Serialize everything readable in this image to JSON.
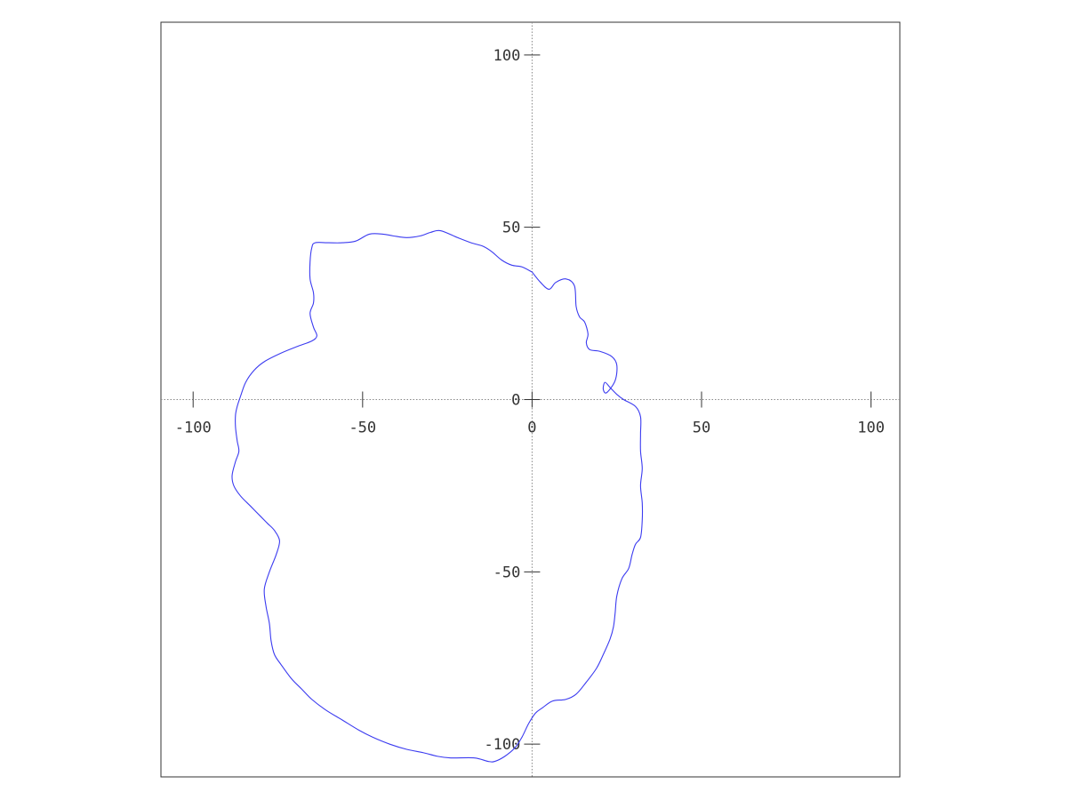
{
  "chart_data": {
    "type": "line",
    "title": "",
    "xlabel": "",
    "ylabel": "",
    "xlim": [
      -109.5,
      108.5
    ],
    "ylim": [
      -109.5,
      109.5
    ],
    "grid": false,
    "axis_lines_through_origin": true,
    "axis_line_style": "dotted",
    "x_ticks": [
      -100,
      -50,
      0,
      50,
      100
    ],
    "y_ticks": [
      -100,
      -50,
      0,
      50,
      100
    ],
    "x_tick_labels": [
      "-100",
      "-50",
      "0",
      "50",
      "100"
    ],
    "y_tick_labels": [
      "-100",
      "-50",
      "0",
      "50",
      "100"
    ],
    "series": [
      {
        "color": "#3b3bf0",
        "closed": true,
        "points": [
          [
            0,
            37
          ],
          [
            -3,
            38.5
          ],
          [
            -6,
            39
          ],
          [
            -9,
            40.5
          ],
          [
            -12,
            43
          ],
          [
            -14.5,
            44.5
          ],
          [
            -18,
            45.5
          ],
          [
            -22,
            47
          ],
          [
            -27,
            49
          ],
          [
            -30,
            48.5
          ],
          [
            -33,
            47.5
          ],
          [
            -37,
            47
          ],
          [
            -41,
            47.5
          ],
          [
            -44,
            48
          ],
          [
            -48,
            48
          ],
          [
            -52,
            46
          ],
          [
            -56,
            45.5
          ],
          [
            -60,
            45.5
          ],
          [
            -64,
            45.5
          ],
          [
            -65,
            44
          ],
          [
            -65.5,
            40
          ],
          [
            -65.5,
            35
          ],
          [
            -64.5,
            31
          ],
          [
            -64.5,
            28
          ],
          [
            -65.5,
            25
          ],
          [
            -64.5,
            21
          ],
          [
            -63.5,
            18.5
          ],
          [
            -65,
            17
          ],
          [
            -69,
            15.5
          ],
          [
            -74,
            13.5
          ],
          [
            -79,
            11
          ],
          [
            -82,
            8.5
          ],
          [
            -84.5,
            5
          ],
          [
            -86,
            1
          ],
          [
            -87,
            -2
          ],
          [
            -87.5,
            -4.5
          ],
          [
            -87.5,
            -8
          ],
          [
            -87,
            -12
          ],
          [
            -86.5,
            -15
          ],
          [
            -87.5,
            -18
          ],
          [
            -88.5,
            -22
          ],
          [
            -88,
            -25
          ],
          [
            -86,
            -28
          ],
          [
            -83,
            -31
          ],
          [
            -80,
            -34
          ],
          [
            -78,
            -36
          ],
          [
            -76,
            -38
          ],
          [
            -74.5,
            -41
          ],
          [
            -75.5,
            -45
          ],
          [
            -77.5,
            -50
          ],
          [
            -79,
            -55
          ],
          [
            -78.5,
            -60
          ],
          [
            -77.5,
            -65
          ],
          [
            -77,
            -70
          ],
          [
            -76,
            -74
          ],
          [
            -74,
            -77
          ],
          [
            -71,
            -81
          ],
          [
            -68,
            -84
          ],
          [
            -65,
            -87
          ],
          [
            -61,
            -90
          ],
          [
            -56,
            -93
          ],
          [
            -51,
            -96
          ],
          [
            -47,
            -98
          ],
          [
            -42,
            -100
          ],
          [
            -37,
            -101.5
          ],
          [
            -32,
            -102.5
          ],
          [
            -28,
            -103.5
          ],
          [
            -24,
            -104
          ],
          [
            -17,
            -104
          ],
          [
            -13,
            -105
          ],
          [
            -11,
            -105
          ],
          [
            -8,
            -103.5
          ],
          [
            -5,
            -101
          ],
          [
            -3,
            -98
          ],
          [
            -1,
            -94
          ],
          [
            1,
            -91
          ],
          [
            3,
            -89.5
          ],
          [
            6,
            -87.5
          ],
          [
            10,
            -87
          ],
          [
            13,
            -85.5
          ],
          [
            16,
            -82
          ],
          [
            19,
            -78
          ],
          [
            21,
            -74
          ],
          [
            23,
            -69.5
          ],
          [
            24,
            -66
          ],
          [
            24.5,
            -62
          ],
          [
            25,
            -57
          ],
          [
            26.5,
            -52
          ],
          [
            28.5,
            -49
          ],
          [
            29.5,
            -45
          ],
          [
            30.5,
            -42
          ],
          [
            32,
            -40
          ],
          [
            32.5,
            -35
          ],
          [
            32.5,
            -30
          ],
          [
            32,
            -25
          ],
          [
            32.5,
            -20
          ],
          [
            32,
            -15
          ],
          [
            32,
            -10
          ],
          [
            32,
            -5
          ],
          [
            30.5,
            -2
          ],
          [
            27,
            0
          ],
          [
            25,
            1.5
          ],
          [
            23,
            3.5
          ],
          [
            21.5,
            5
          ],
          [
            21,
            3
          ],
          [
            22,
            2
          ],
          [
            24.5,
            5.5
          ],
          [
            25,
            10
          ],
          [
            23.5,
            12.5
          ],
          [
            20,
            14
          ],
          [
            17,
            14.5
          ],
          [
            16,
            16.5
          ],
          [
            16.5,
            19
          ],
          [
            15.5,
            22.5
          ],
          [
            14,
            24
          ],
          [
            13,
            27
          ],
          [
            12.5,
            33
          ],
          [
            10,
            35
          ],
          [
            7,
            34
          ],
          [
            5,
            32
          ],
          [
            2.5,
            34
          ],
          [
            0,
            37
          ]
        ]
      }
    ]
  }
}
